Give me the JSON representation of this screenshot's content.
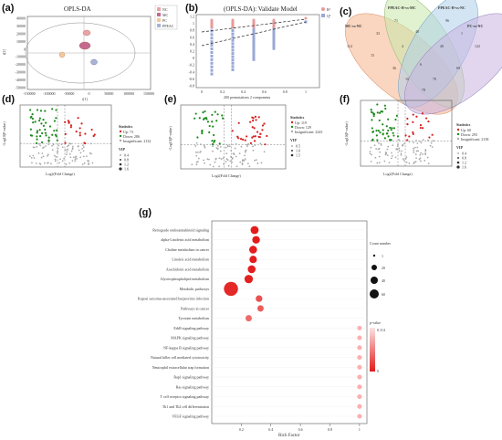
{
  "panels": {
    "a": {
      "label": "(a)",
      "title": "OPLS-DA",
      "xlabel": "t[1]",
      "ylabel": "t[2]",
      "xticks": [
        "-150000",
        "-100000",
        "-50000",
        "0",
        "50000",
        "100000",
        "150000"
      ],
      "yticks": [
        "40000",
        "30000",
        "20000",
        "10000",
        "0",
        "-10000",
        "-20000",
        "-30000",
        "-40000",
        "-50000"
      ],
      "legend": [
        "NC",
        "MC",
        "PC",
        "PPEAC"
      ]
    },
    "b": {
      "label": "(b)",
      "title": "(OPLS-DA): Validate Model",
      "xlabel": "200 permutations 2 components",
      "xticks": [
        "0",
        "0.2",
        "0.4",
        "0.6",
        "0.8",
        "1"
      ],
      "yticks": [
        "1.2",
        "1",
        "0.8",
        "0.6",
        "0.4",
        "0.2",
        "0",
        "-0.2",
        "-0.4",
        "-0.6",
        "-0.8"
      ],
      "legend": [
        "R²",
        "Q²"
      ]
    },
    "c": {
      "label": "(c)",
      "sets": [
        "MC-vs-NC",
        "PPEAC-H-vs-MC",
        "PPEAC-H-vs-NC",
        "PC-vs-NC"
      ],
      "counts": [
        "114",
        "71",
        "96",
        "122",
        "33",
        "48",
        "1",
        "15",
        "4",
        "40",
        "36",
        "6",
        "10",
        "70",
        "69",
        "78"
      ]
    },
    "d": {
      "label": "(d)",
      "xlabel": "Log2(Fold Change)",
      "ylabel": "-Log10(P-value)",
      "stats_title": "Statistics",
      "up": "Up: 73",
      "down": "Down: 286",
      "insig": "Insignificant: 2132",
      "vip_title": "VIP",
      "vip": [
        "0.4",
        "0.8",
        "1.2",
        "1.6"
      ]
    },
    "e": {
      "label": "(e)",
      "xlabel": "Log2(Fold Change)",
      "ylabel": "-Log10(P-value)",
      "stats_title": "Statistics",
      "up": "Up: 119",
      "down": "Down: 129",
      "insig": "Insignificant: 2243",
      "vip_title": "VIP",
      "vip": [
        "0.5",
        "1.0",
        "1.5"
      ]
    },
    "f": {
      "label": "(f)",
      "xlabel": "Log2(Fold Change)",
      "ylabel": "-Log10(P-value)",
      "stats_title": "Statistics",
      "up": "Up: 60",
      "down": "Down: 293",
      "insig": "Insignificant: 2138",
      "vip_title": "VIP",
      "vip": [
        "0.4",
        "0.8",
        "1.2",
        "1.6"
      ]
    },
    "g": {
      "label": "(g)",
      "xlabel": "Rich Factor",
      "count_title": "Count number",
      "count_values": [
        "1",
        "20",
        "40",
        "60"
      ],
      "pvalue_title": "p-value",
      "pvalue_range": [
        "0.114",
        "0"
      ]
    }
  },
  "colors": {
    "NC": "#e9a3a3",
    "MC": "#c56a8e",
    "PC": "#f2c79c",
    "PPEAC": "#a8b3d8",
    "up": "#d42020",
    "down": "#1f8a1f",
    "insig": "#a9a9a9",
    "R2": "#e79b9b",
    "Q2": "#9aa8d6",
    "dot_high": "#e53030",
    "dot_low": "#f4b0b0"
  },
  "chart_data": {
    "type": "scatter",
    "title": "",
    "xlabel": "Rich Factor",
    "ylabel": "",
    "xlim": [
      0,
      1.05
    ],
    "xticks": [
      0.2,
      0.4,
      0.6,
      0.8,
      1.0
    ],
    "categories": [
      "Retrograde endocannabinoid signaling",
      "alpha-Linolenic acid metabolism",
      "Choline metabolism in cancer",
      "Linoleic acid metabolism",
      "Arachidonic acid metabolism",
      "Glycerophospholipid metabolism",
      "Metabolic pathways",
      "Kaposi sarcoma-associated herpesvirus infection",
      "Pathways in cancer",
      "Tyrosine metabolism",
      "ErbB signaling pathway",
      "MAPK signaling pathway",
      "NF-kappa B signaling pathway",
      "Natural killer cell mediated cytotoxicity",
      "Neutrophil extracellular trap formation",
      "Rap1 signaling pathway",
      "Ras signaling pathway",
      "T cell receptor signaling pathway",
      "Th1 and Th2 cell differentiation",
      "VEGF signaling pathway"
    ],
    "rich_factor": [
      0.29,
      0.3,
      0.28,
      0.28,
      0.27,
      0.25,
      0.13,
      0.32,
      0.33,
      0.25,
      1.0,
      1.0,
      1.0,
      1.0,
      1.0,
      1.0,
      1.0,
      1.0,
      1.0,
      1.0
    ],
    "count": [
      12,
      10,
      11,
      9,
      11,
      14,
      62,
      6,
      5,
      5,
      1,
      1,
      1,
      1,
      1,
      1,
      1,
      1,
      1,
      1
    ],
    "p_value": [
      0.0,
      0.0,
      0.002,
      0.002,
      0.003,
      0.004,
      0.01,
      0.04,
      0.05,
      0.06,
      0.114,
      0.114,
      0.114,
      0.114,
      0.114,
      0.114,
      0.114,
      0.114,
      0.114,
      0.114
    ]
  }
}
